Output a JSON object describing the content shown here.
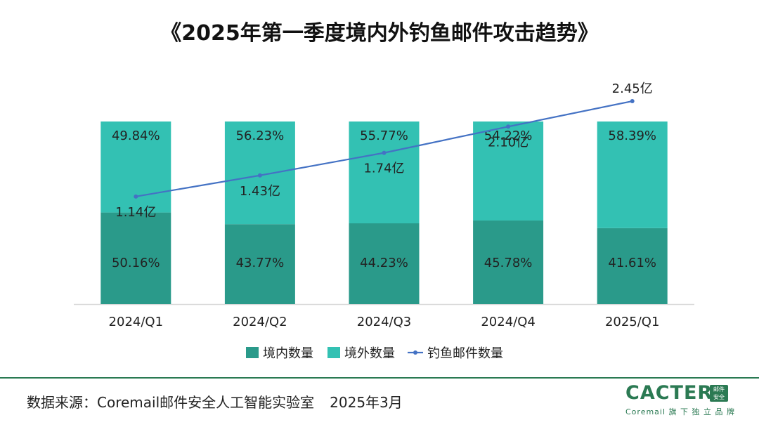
{
  "title": "《2025年第一季度境内外钓鱼邮件攻击趋势》",
  "colors": {
    "domestic": "#2a9a8a",
    "foreign": "#33c1b3",
    "line": "#4472c4",
    "axis": "#d9d9d9",
    "footer": "#2a7a53"
  },
  "chart_data": {
    "type": "bar",
    "stacked": true,
    "categories": [
      "2024/Q1",
      "2024/Q2",
      "2024/Q3",
      "2024/Q4",
      "2025/Q1"
    ],
    "series": [
      {
        "name": "境内数量",
        "kind": "bar",
        "values": [
          50.16,
          43.77,
          44.23,
          45.78,
          41.61
        ],
        "labels": [
          "50.16%",
          "43.77%",
          "44.23%",
          "45.78%",
          "41.61%"
        ]
      },
      {
        "name": "境外数量",
        "kind": "bar",
        "values": [
          49.84,
          56.23,
          55.77,
          54.22,
          58.39
        ],
        "labels": [
          "49.84%",
          "56.23%",
          "55.77%",
          "54.22%",
          "58.39%"
        ]
      },
      {
        "name": "钓鱼邮件数量",
        "kind": "line",
        "values": [
          1.14,
          1.43,
          1.74,
          2.1,
          2.45
        ],
        "labels": [
          "1.14亿",
          "1.43亿",
          "1.74亿",
          "2.10亿",
          "2.45亿"
        ],
        "unit": "亿"
      }
    ],
    "ylim": [
      0,
      100
    ],
    "line_ylim": [
      0,
      3
    ],
    "legend": [
      "境内数量",
      "境外数量",
      "钓鱼邮件数量"
    ],
    "legend_position": "bottom"
  },
  "footer": {
    "source": "数据来源：Coremail邮件安全人工智能实验室",
    "date": "2025年3月"
  },
  "logo": {
    "word": "CACTER",
    "badge_line1": "邮件",
    "badge_line2": "安全",
    "tagline": "Coremail 旗 下 独 立 品 牌"
  }
}
